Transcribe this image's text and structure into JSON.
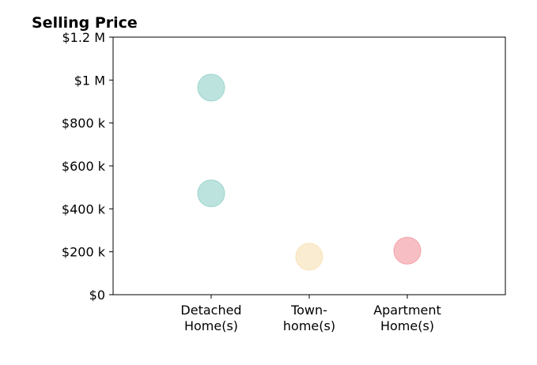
{
  "chart_data": {
    "type": "scatter",
    "title": "Selling Price",
    "xlabel": "",
    "ylabel": "",
    "categories": [
      [
        "Detached",
        "Home(s)"
      ],
      [
        "Town-",
        "home(s)"
      ],
      [
        "Apartment",
        "Home(s)"
      ]
    ],
    "y_ticks": [
      {
        "value": 0,
        "label": "$0"
      },
      {
        "value": 200000,
        "label": "$200 k"
      },
      {
        "value": 400000,
        "label": "$400 k"
      },
      {
        "value": 600000,
        "label": "$600 k"
      },
      {
        "value": 800000,
        "label": "$800 k"
      },
      {
        "value": 1000000,
        "label": "$1 M"
      },
      {
        "value": 1200000,
        "label": "$1.2 M"
      }
    ],
    "ylim": [
      0,
      1200000
    ],
    "xlim": [
      -1,
      3
    ],
    "grid": false,
    "legend": "none",
    "series": [
      {
        "category_index": 0,
        "values": [
          965000,
          472000
        ],
        "color": "#8fd0c8"
      },
      {
        "category_index": 1,
        "values": [
          177000
        ],
        "color": "#f7e0b0"
      },
      {
        "category_index": 2,
        "values": [
          205000
        ],
        "color": "#f2949c"
      }
    ]
  }
}
